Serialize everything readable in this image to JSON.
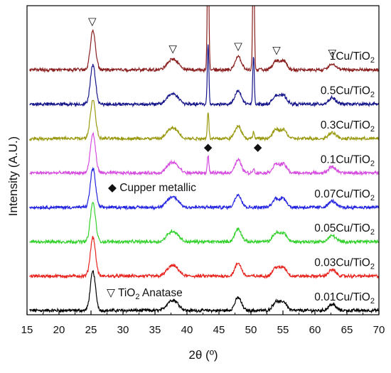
{
  "chart_data": {
    "type": "line",
    "title": "",
    "xlabel": "2θ (º)",
    "ylabel": "Intensity (A.U.)",
    "xlim": [
      15,
      70
    ],
    "xticks": [
      15,
      20,
      25,
      30,
      35,
      40,
      45,
      50,
      55,
      60,
      65,
      70
    ],
    "grid": false,
    "peaks": [
      {
        "center": 25.3,
        "width": 0.4,
        "height": 1.0
      },
      {
        "center": 37.0,
        "width": 0.5,
        "height": 0.13
      },
      {
        "center": 37.8,
        "width": 0.5,
        "height": 0.2
      },
      {
        "center": 38.6,
        "width": 0.5,
        "height": 0.12
      },
      {
        "center": 48.0,
        "width": 0.5,
        "height": 0.33
      },
      {
        "center": 53.9,
        "width": 0.5,
        "height": 0.22
      },
      {
        "center": 55.1,
        "width": 0.5,
        "height": 0.22
      },
      {
        "center": 62.7,
        "width": 0.55,
        "height": 0.16
      }
    ],
    "series": [
      {
        "name": "0.01Cu/TiO2",
        "label_main": "0.01Cu/TiO",
        "label_sub": "2",
        "color": "#000000",
        "baseline": 0.0,
        "cu_peaks": []
      },
      {
        "name": "0.03Cu/TiO2",
        "label_main": "0.03Cu/TiO",
        "label_sub": "2",
        "color": "#e8241f",
        "baseline": 0.88,
        "cu_peaks": []
      },
      {
        "name": "0.05Cu/TiO2",
        "label_main": "0.05Cu/TiO",
        "label_sub": "2",
        "color": "#35d12e",
        "baseline": 1.76,
        "cu_peaks": []
      },
      {
        "name": "0.07Cu/TiO2",
        "label_main": "0.07Cu/TiO",
        "label_sub": "2",
        "color": "#2323e0",
        "baseline": 2.64,
        "cu_peaks": []
      },
      {
        "name": "0.1Cu/TiO2",
        "label_main": "0.1Cu/TiO",
        "label_sub": "2",
        "color": "#d64ee0",
        "baseline": 3.52,
        "cu_peaks": [
          {
            "center": 43.3,
            "height": 0.45
          },
          {
            "center": 50.4,
            "height": 0.12
          }
        ]
      },
      {
        "name": "0.3Cu/TiO2",
        "label_main": "0.3Cu/TiO",
        "label_sub": "2",
        "color": "#9a9a12",
        "baseline": 4.4,
        "cu_peaks": [
          {
            "center": 43.3,
            "height": 0.7
          },
          {
            "center": 50.4,
            "height": 0.18
          }
        ]
      },
      {
        "name": "0.5Cu/TiO2",
        "label_main": "0.5Cu/TiO",
        "label_sub": "2",
        "color": "#16168a",
        "baseline": 5.28,
        "cu_peaks": [
          {
            "center": 43.3,
            "height": 1.55
          },
          {
            "center": 50.4,
            "height": 1.25
          }
        ]
      },
      {
        "name": "1Cu/TiO2",
        "label_main": "1Cu/TiO",
        "label_sub": "2",
        "color": "#8a1f1f",
        "baseline": 6.16,
        "cu_peaks": [
          {
            "center": 43.3,
            "height": 3.5
          },
          {
            "center": 50.4,
            "height": 3.5
          }
        ]
      }
    ],
    "anatase_markers": [
      25.2,
      37.8,
      48.0,
      54.0,
      62.7
    ],
    "cu_markers": [
      43.3,
      50.4
    ],
    "legend": [
      {
        "symbol": "◆",
        "text": "Cupper metallic"
      },
      {
        "symbol": "▽",
        "text_main": "TiO",
        "text_sub": "2",
        "text_after": " Anatase"
      }
    ],
    "symbols": {
      "anatase": "▽",
      "copper": "◆"
    }
  }
}
